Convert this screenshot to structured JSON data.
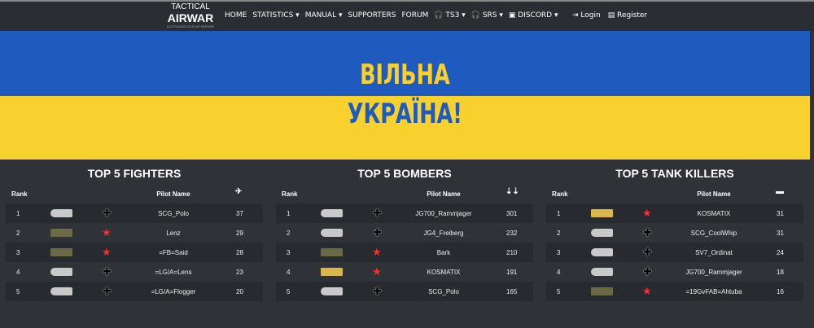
{
  "nav": {
    "logo_top": "TACTICAL",
    "logo_main": "AIRWAR",
    "logo_sub": "DJ STUDIOS DCS MP SERVER",
    "items": [
      "HOME",
      "STATISTICS ▾",
      "MANUAL ▾",
      "SUPPORTERS",
      "FORUM",
      "🎧 TS3 ▾",
      "🎧 SRS ▾",
      "▣ DISCORD ▾"
    ],
    "login": "⇥ Login",
    "register": "▤ Register"
  },
  "banner": {
    "line1": "ВІЛЬНА",
    "line2": "УКРАЇНА!",
    "colors": {
      "blue": "#1f5bbf",
      "yellow": "#f8d12e"
    }
  },
  "tables": [
    {
      "title": "TOP 5 FIGHTERS",
      "rank_header": "Rank",
      "name_header": "Pilot Name",
      "stat_icon": "fighter-plane-icon",
      "rows": [
        {
          "rank": "1",
          "board": "silver",
          "side": "german",
          "name": "SCG_Polo",
          "value": "37"
        },
        {
          "rank": "2",
          "board": "green",
          "side": "soviet",
          "name": "Lenz",
          "value": "29"
        },
        {
          "rank": "3",
          "board": "green",
          "side": "soviet",
          "name": "=FB=Said",
          "value": "28"
        },
        {
          "rank": "4",
          "board": "silver",
          "side": "german",
          "name": "=LG/A=Lens",
          "value": "23"
        },
        {
          "rank": "5",
          "board": "silver",
          "side": "german",
          "name": "=LG/A=Flogger",
          "value": "20"
        }
      ]
    },
    {
      "title": "TOP 5 BOMBERS",
      "rank_header": "Rank",
      "name_header": "Pilot Name",
      "stat_icon": "bombs-icon",
      "rows": [
        {
          "rank": "1",
          "board": "silver",
          "side": "german",
          "name": "JG700_Rammjager",
          "value": "301"
        },
        {
          "rank": "2",
          "board": "silver",
          "side": "german",
          "name": "JG4_Freiberg",
          "value": "232"
        },
        {
          "rank": "3",
          "board": "green",
          "side": "soviet",
          "name": "Bark",
          "value": "210"
        },
        {
          "rank": "4",
          "board": "yellow",
          "side": "soviet",
          "name": "KOSMATIX",
          "value": "191"
        },
        {
          "rank": "5",
          "board": "silver",
          "side": "german",
          "name": "SCG_Polo",
          "value": "165"
        }
      ]
    },
    {
      "title": "TOP 5 TANK KILLERS",
      "rank_header": "Rank",
      "name_header": "Pilot Name",
      "stat_icon": "tank-icon",
      "rows": [
        {
          "rank": "1",
          "board": "yellow",
          "side": "soviet",
          "name": "KOSMATIX",
          "value": "31"
        },
        {
          "rank": "2",
          "board": "silver",
          "side": "german",
          "name": "SCG_CoolWhip",
          "value": "31"
        },
        {
          "rank": "3",
          "board": "silver",
          "side": "german",
          "name": "SV7_Ordinat",
          "value": "24"
        },
        {
          "rank": "4",
          "board": "silver",
          "side": "german",
          "name": "JG700_Rammjager",
          "value": "18"
        },
        {
          "rank": "5",
          "board": "green",
          "side": "soviet",
          "name": "=19GvFAB=Ahtuba",
          "value": "16"
        }
      ]
    }
  ]
}
